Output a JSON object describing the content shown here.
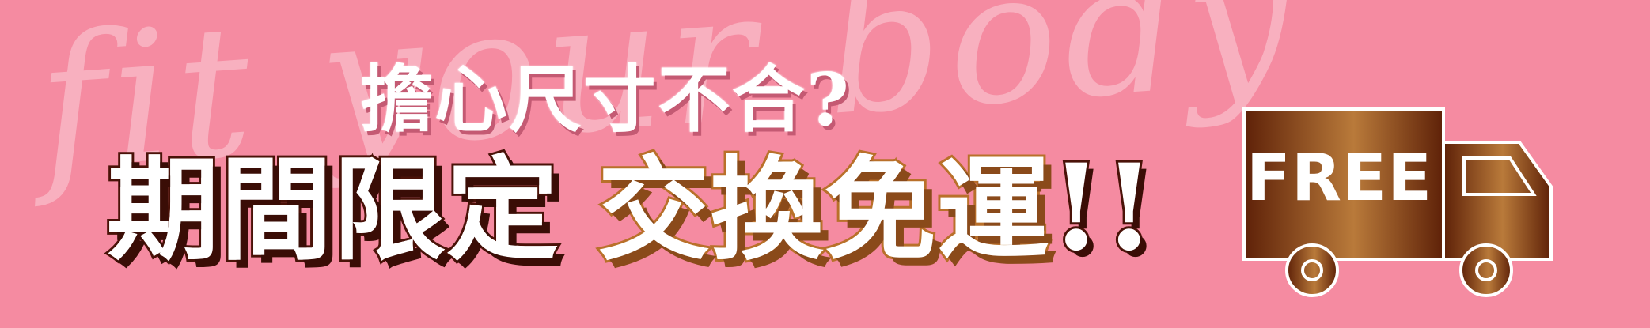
{
  "watermark": {
    "text": "fit your body"
  },
  "subtitle": {
    "text": "擔心尺寸不合?"
  },
  "headline": {
    "part1": "期間限定",
    "part2": "交換免運",
    "exclaim": "!!"
  },
  "truck": {
    "label": "FREE",
    "icon": "delivery-truck-icon"
  },
  "colors": {
    "background": "#f58ba1",
    "dark_outline": "#4a1208",
    "gold_outline": "#b9702a",
    "truck_gradient": [
      "#5e2108",
      "#b97a3a",
      "#5e2108"
    ]
  }
}
